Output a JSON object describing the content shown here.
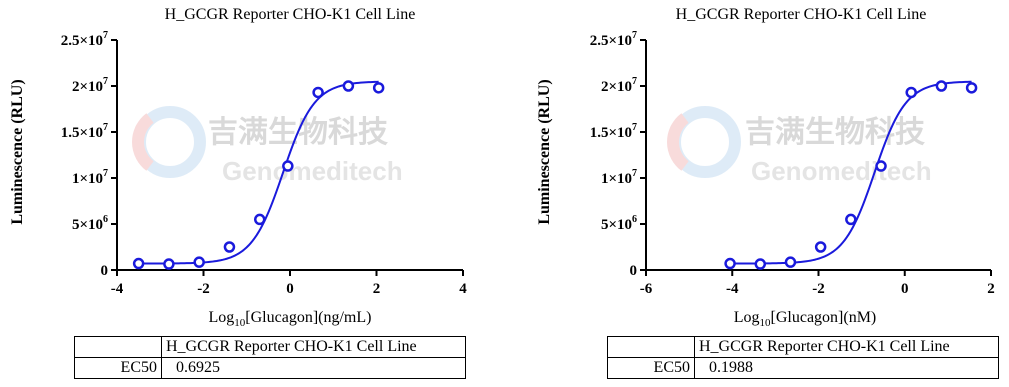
{
  "chart_data": [
    {
      "type": "scatter",
      "title": "H_GCGR Reporter CHO-K1 Cell Line",
      "xlabel": "Log10[Glucagon](ng/mL)",
      "xlabel_parts": {
        "pre": "Log",
        "sub": "10",
        "post": "[Glucagon](ng/mL)"
      },
      "ylabel": "Luminescence (RLU)",
      "xlim": [
        -4,
        4
      ],
      "xticks": [
        -4,
        -2,
        0,
        2,
        4
      ],
      "ylim": [
        0,
        25000000
      ],
      "yticks": [
        {
          "value": 0,
          "mant": "0",
          "exp": ""
        },
        {
          "value": 5000000,
          "mant": "5×10",
          "exp": "6"
        },
        {
          "value": 10000000,
          "mant": "1×10",
          "exp": "7"
        },
        {
          "value": 15000000,
          "mant": "1.5×10",
          "exp": "7"
        },
        {
          "value": 20000000,
          "mant": "2×10",
          "exp": "7"
        },
        {
          "value": 25000000,
          "mant": "2.5×10",
          "exp": "7"
        }
      ],
      "series": [
        {
          "x": [
            -3.5,
            -2.8,
            -2.1,
            -1.4,
            -0.7,
            -0.05,
            0.65,
            1.35,
            2.05
          ],
          "y": [
            700000,
            650000,
            850000,
            2500000,
            5500000,
            11300000,
            19300000,
            20000000,
            19800000
          ]
        }
      ],
      "fit": {
        "bottom": 700000,
        "top": 20500000,
        "log_ec50": -0.16,
        "hill": 1.2
      },
      "colors": {
        "series": "#1a1adc"
      },
      "grid": false,
      "table": {
        "header": "H_GCGR Reporter CHO-K1 Cell Line",
        "row_label": "EC50",
        "row_value": "0.6925"
      }
    },
    {
      "type": "scatter",
      "title": "H_GCGR Reporter CHO-K1 Cell Line",
      "xlabel": "Log10[Glucagon](nM)",
      "xlabel_parts": {
        "pre": "Log",
        "sub": "10",
        "post": "[Glucagon](nM)"
      },
      "ylabel": "Luminescence (RLU)",
      "xlim": [
        -6,
        2
      ],
      "xticks": [
        -6,
        -4,
        -2,
        0,
        2
      ],
      "ylim": [
        0,
        25000000
      ],
      "yticks": [
        {
          "value": 0,
          "mant": "0",
          "exp": ""
        },
        {
          "value": 5000000,
          "mant": "5×10",
          "exp": "6"
        },
        {
          "value": 10000000,
          "mant": "1×10",
          "exp": "7"
        },
        {
          "value": 15000000,
          "mant": "1.5×10",
          "exp": "7"
        },
        {
          "value": 20000000,
          "mant": "2×10",
          "exp": "7"
        },
        {
          "value": 25000000,
          "mant": "2.5×10",
          "exp": "7"
        }
      ],
      "series": [
        {
          "x": [
            -4.05,
            -3.35,
            -2.65,
            -1.95,
            -1.25,
            -0.55,
            0.15,
            0.85,
            1.55
          ],
          "y": [
            700000,
            650000,
            850000,
            2500000,
            5500000,
            11300000,
            19300000,
            20000000,
            19800000
          ]
        }
      ],
      "fit": {
        "bottom": 700000,
        "top": 20500000,
        "log_ec50": -0.7,
        "hill": 1.2
      },
      "colors": {
        "series": "#1a1adc"
      },
      "grid": false,
      "table": {
        "header": "H_GCGR Reporter CHO-K1 Cell Line",
        "row_label": "EC50",
        "row_value": "0.1988"
      }
    }
  ],
  "watermark": {
    "cn": "吉满生物科技",
    "en": "Genomeditech"
  }
}
